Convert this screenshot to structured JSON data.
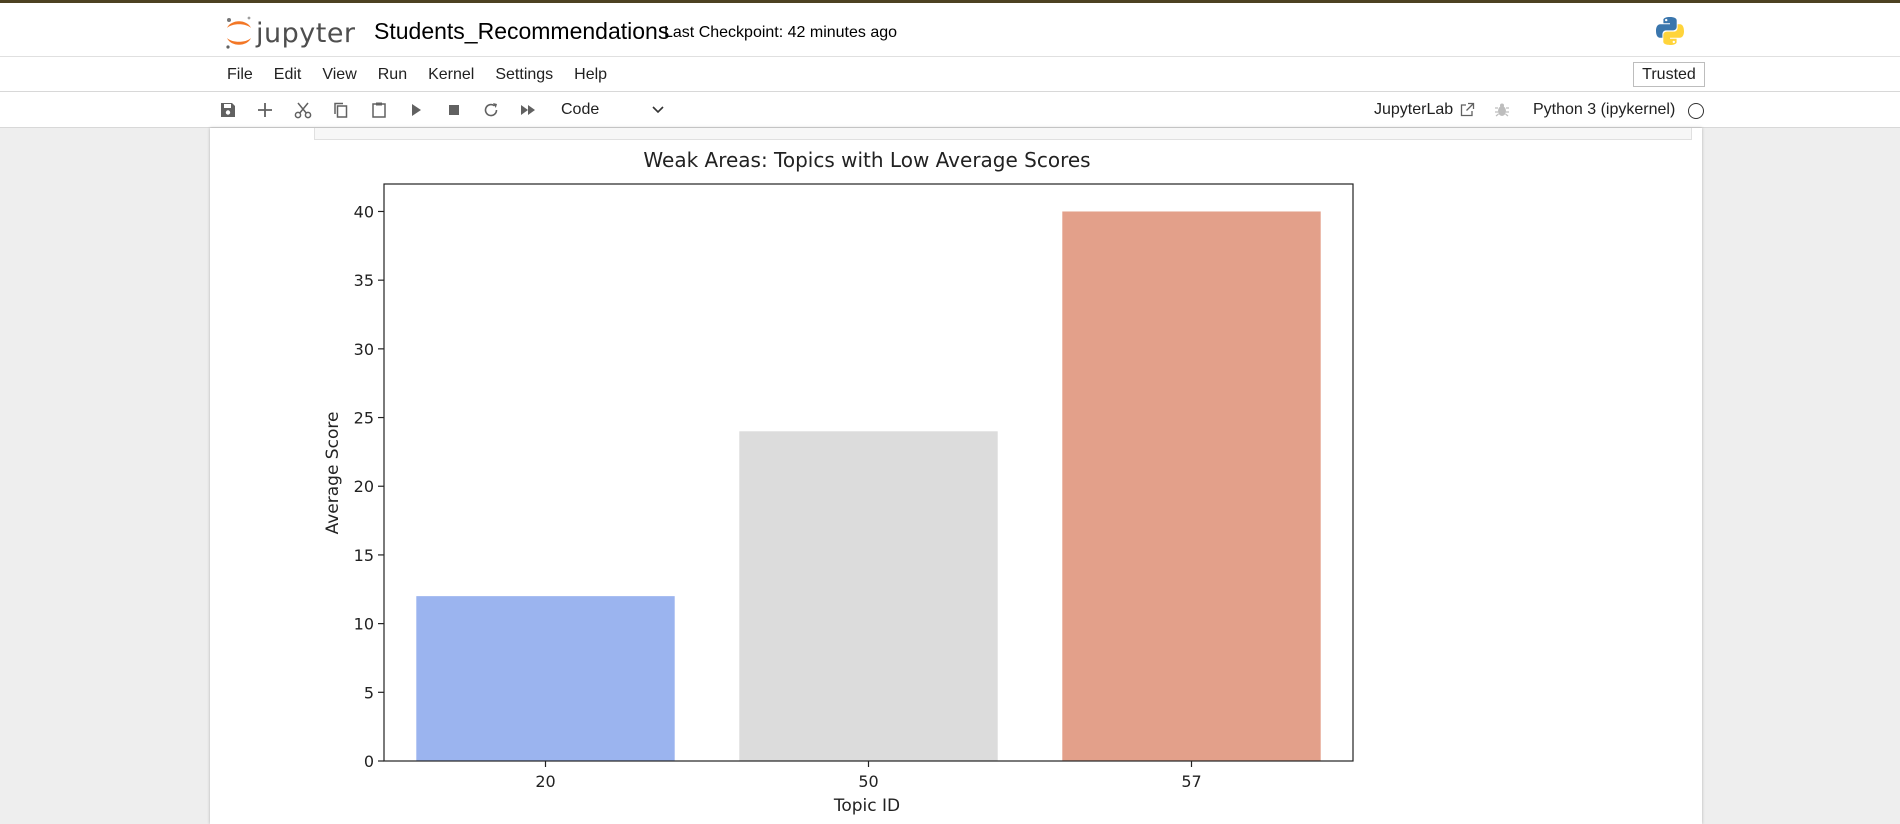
{
  "header": {
    "logo_text": "jupyter",
    "notebook_title": "Students_Recommendations",
    "checkpoint": "Last Checkpoint: 42 minutes ago"
  },
  "menu": {
    "items": [
      "File",
      "Edit",
      "View",
      "Run",
      "Kernel",
      "Settings",
      "Help"
    ],
    "trusted": "Trusted"
  },
  "toolbar": {
    "cell_type": "Code",
    "jupyterlab_label": "JupyterLab",
    "kernel_name": "Python 3 (ipykernel)"
  },
  "chart_data": {
    "type": "bar",
    "title": "Weak Areas: Topics with Low Average Scores",
    "xlabel": "Topic ID",
    "ylabel": "Average Score",
    "categories": [
      "20",
      "50",
      "57"
    ],
    "values": [
      12,
      24,
      40
    ],
    "colors": [
      "#9bb4ef",
      "#dcdcdc",
      "#e3a08a"
    ],
    "ylim": [
      0,
      42
    ],
    "yticks": [
      0,
      5,
      10,
      15,
      20,
      25,
      30,
      35,
      40
    ],
    "grid": false,
    "legend": "none"
  }
}
